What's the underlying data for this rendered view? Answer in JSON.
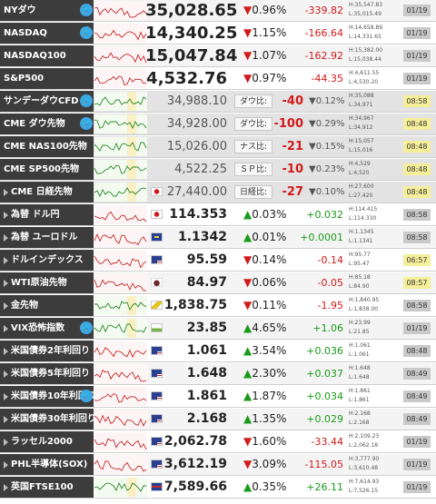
{
  "rows": [
    {
      "name": "NYダウ",
      "price": "35,028.65",
      "dir": "down",
      "pct": "0.96%",
      "chg": "-339.82",
      "h": "H:35,547.83",
      "l": "L:35,015.49",
      "date": "01/19",
      "twitter": true,
      "priceSize": "big",
      "spark": "red"
    },
    {
      "name": "NASDAQ",
      "price": "14,340.25",
      "dir": "down",
      "pct": "1.15%",
      "chg": "-166.64",
      "h": "H:14,658.89",
      "l": "L:14,331.65",
      "date": "01/19",
      "twitter": true,
      "priceSize": "big",
      "spark": "red"
    },
    {
      "name": "NASDAQ100",
      "price": "15,047.84",
      "dir": "down",
      "pct": "1.07%",
      "chg": "-162.92",
      "h": "H:15,382.00",
      "l": "L:15,038.44",
      "date": "01/19",
      "priceSize": "big",
      "spark": "red"
    },
    {
      "name": "S&P500",
      "price": "4,532.76",
      "dir": "down",
      "pct": "0.97%",
      "chg": "-44.35",
      "h": "H:4,611.55",
      "l": "L:4,530.20",
      "date": "01/19",
      "priceSize": "big",
      "spark": "red"
    },
    {
      "name": "サンデーダウCFD",
      "price": "34,988.10",
      "badge": true,
      "blabel": "ダウ比:",
      "bdiff": "-40",
      "pct": "0.12%",
      "dir": "down",
      "h": "H:35,088",
      "l": "L:34,971",
      "date": "08:58",
      "hiDate": true,
      "twitter": true,
      "priceSize": "mid",
      "spark": "green"
    },
    {
      "name": "CME ダウ先物",
      "price": "34,928.00",
      "badge": true,
      "blabel": "ダウ比:",
      "bdiff": "-100",
      "pct": "0.29%",
      "dir": "down",
      "h": "H:34,967",
      "l": "L:34,912",
      "date": "08:48",
      "hiDate": true,
      "twitter": true,
      "priceSize": "mid",
      "spark": "green"
    },
    {
      "name": "CME NAS100先物",
      "price": "15,026.00",
      "badge": true,
      "blabel": "ナス比:",
      "bdiff": "-21",
      "pct": "0.15%",
      "dir": "down",
      "h": "H:15,057",
      "l": "L:15,016",
      "date": "08:48",
      "hiDate": true,
      "priceSize": "mid",
      "spark": "green"
    },
    {
      "name": "CME SP500先物",
      "price": "4,522.25",
      "badge": true,
      "blabel": "ＳＰ比:",
      "bdiff": "-10",
      "pct": "0.23%",
      "dir": "down",
      "h": "H:4,529",
      "l": "L:4,520",
      "date": "08:48",
      "hiDate": true,
      "priceSize": "mid",
      "spark": "green"
    },
    {
      "name": "CME 日経先物",
      "price": "27,440.00",
      "badge": true,
      "blabel": "日経比:",
      "bdiff": "-27",
      "pct": "0.10%",
      "dir": "down",
      "h": "H:27,600",
      "l": "L:27,420",
      "date": "08:48",
      "hiDate": true,
      "arrow": true,
      "flag": "jp",
      "priceSize": "mid",
      "spark": "green"
    },
    {
      "name": "為替 ドル円",
      "price": "114.353",
      "dir": "up",
      "pct": "0.03%",
      "chg": "+0.032",
      "h": "H:114.415",
      "l": "L:114.330",
      "date": "08:58",
      "arrow": true,
      "flag": "jp",
      "spark": "red"
    },
    {
      "name": "為替 ユーロドル",
      "price": "1.1342",
      "dir": "up",
      "pct": "0.01%",
      "chg": "+0.0001",
      "h": "H:1.1345",
      "l": "L:1.1341",
      "date": "08:58",
      "arrow": true,
      "flag": "eu",
      "spark": "red"
    },
    {
      "name": "ドルインデックス",
      "price": "95.59",
      "dir": "down",
      "pct": "0.14%",
      "chg": "-0.14",
      "h": "H:95.77",
      "l": "L:95.47",
      "date": "06:57",
      "hiDate": true,
      "arrow": true,
      "flag": "us",
      "spark": "red"
    },
    {
      "name": "WTI原油先物",
      "price": "84.97",
      "dir": "down",
      "pct": "0.06%",
      "chg": "-0.05",
      "h": "H:85.18",
      "l": "L:84.90",
      "date": "08:57",
      "hiDate": true,
      "arrow": true,
      "flag": "oil",
      "spark": "red"
    },
    {
      "name": "金先物",
      "price": "1,838.75",
      "dir": "down",
      "pct": "0.11%",
      "chg": "-1.95",
      "h": "H:1,840.95",
      "l": "L:1,838.00",
      "date": "08:58",
      "arrow": true,
      "flag": "gold",
      "spark": "green"
    },
    {
      "name": "VIX恐怖指数",
      "price": "23.85",
      "dir": "up",
      "pct": "4.65%",
      "chg": "+1.06",
      "h": "H:23.99",
      "l": "L:21.85",
      "date": "01/19",
      "twitter": true,
      "arrow": true,
      "flag": "vix",
      "spark": "green"
    },
    {
      "name": "米国債券2年利回り",
      "price": "1.061",
      "dir": "up",
      "pct": "3.54%",
      "chg": "+0.036",
      "h": "H:1.061",
      "l": "L:1.061",
      "date": "08:48",
      "arrow": true,
      "flag": "us",
      "spark": "red"
    },
    {
      "name": "米国債券5年利回り",
      "price": "1.648",
      "dir": "up",
      "pct": "2.30%",
      "chg": "+0.037",
      "h": "H:1.648",
      "l": "L:1.648",
      "date": "08:49",
      "arrow": true,
      "flag": "us",
      "spark": "red"
    },
    {
      "name": "米国債券10年利回り",
      "price": "1.861",
      "dir": "up",
      "pct": "1.87%",
      "chg": "+0.034",
      "h": "H:1.861",
      "l": "L:1.861",
      "date": "08:49",
      "twitter": true,
      "arrow": true,
      "flag": "us",
      "spark": "red"
    },
    {
      "name": "米国債券30年利回り",
      "price": "2.168",
      "dir": "up",
      "pct": "1.35%",
      "chg": "+0.029",
      "h": "H:2.168",
      "l": "L:2.168",
      "date": "08:49",
      "arrow": true,
      "flag": "us",
      "spark": "red"
    },
    {
      "name": "ラッセル2000",
      "price": "2,062.78",
      "dir": "down",
      "pct": "1.60%",
      "chg": "-33.44",
      "h": "H:2,109.23",
      "l": "L:2,062.18",
      "date": "01/19",
      "arrow": true,
      "flag": "us",
      "spark": "red"
    },
    {
      "name": "PHL半導体(SOX)",
      "price": "3,612.19",
      "dir": "down",
      "pct": "3.09%",
      "chg": "-115.05",
      "h": "H:3,777.90",
      "l": "L:3,610.48",
      "date": "01/19",
      "arrow": true,
      "flag": "us",
      "spark": "red"
    },
    {
      "name": "英国FTSE100",
      "price": "7,589.66",
      "dir": "up",
      "pct": "0.35%",
      "chg": "+26.11",
      "h": "H:7,614.93",
      "l": "L:7,526.15",
      "date": "01/19",
      "arrow": true,
      "flag": "uk",
      "spark": "green"
    }
  ],
  "labels": {
    "up": "▲",
    "down": "▼",
    "twitter": "🐦"
  },
  "colors": {
    "up": "#1a9a1a",
    "down": "#d21a1a",
    "header_bg": "#3c3c3c",
    "date_bg": "#c9c9c9",
    "date_highlight": "#f5ee9a"
  }
}
